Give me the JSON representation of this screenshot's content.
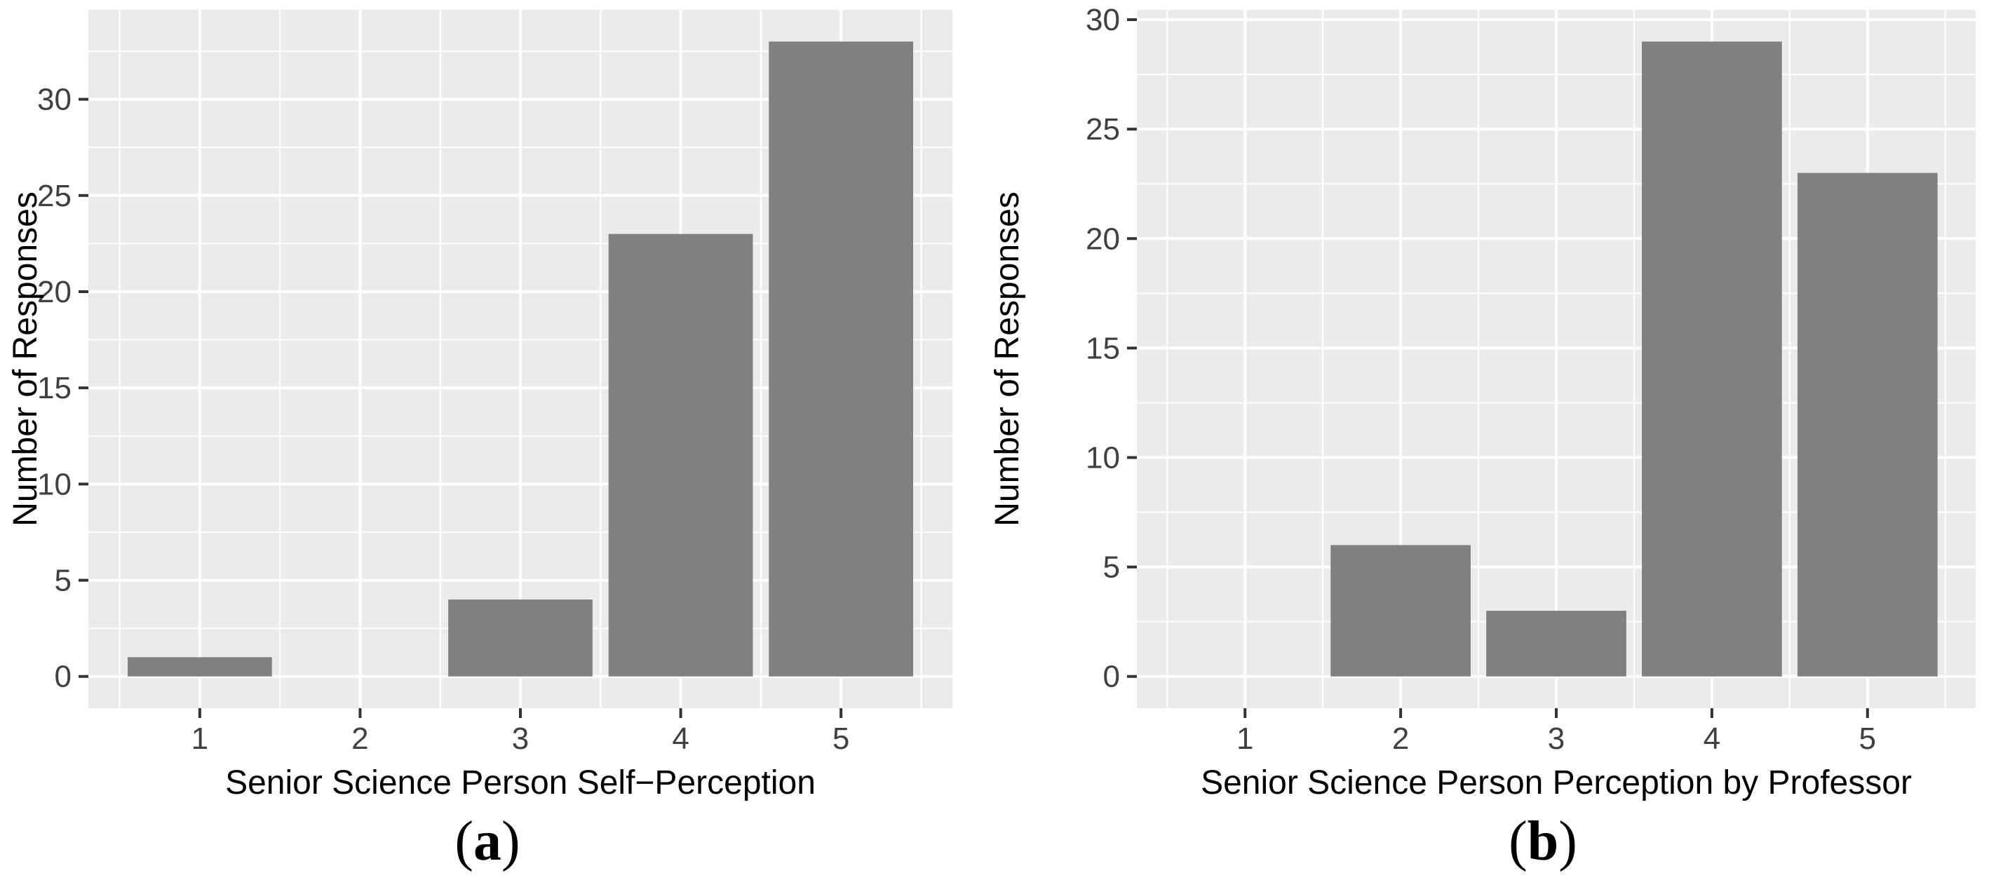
{
  "style": {
    "background": "#FFFFFF",
    "panel_background": "#EBEBEB",
    "grid_color": "#FFFFFF",
    "bar_color": "#808080",
    "tick_mark_color": "#333333",
    "tick_label_color": "#404040",
    "axis_title_color": "#000000",
    "caption_color": "#000000"
  },
  "chart_data": [
    {
      "type": "bar",
      "caption_open": "(",
      "caption_letter": "a",
      "caption_close": ")",
      "xlabel": "Senior Science Person Self−Perception",
      "ylabel": "Number of Responses",
      "categories": [
        1,
        2,
        3,
        4,
        5
      ],
      "values": [
        1,
        0,
        4,
        23,
        33
      ],
      "bar_width": 0.9,
      "xticks": [
        "1",
        "2",
        "3",
        "4",
        "5"
      ],
      "yticks": [
        0,
        5,
        10,
        15,
        20,
        25,
        30
      ],
      "xlim": [
        0.305,
        5.695
      ],
      "ylim": [
        -1.65,
        34.65
      ],
      "grid": "white major and minor gridlines on grey panel (ggplot theme_grey)",
      "legend": "none"
    },
    {
      "type": "bar",
      "caption_open": "(",
      "caption_letter": "b",
      "caption_close": ")",
      "xlabel": "Senior Science Person Perception by Professor",
      "ylabel": "Number of Responses",
      "categories": [
        1,
        2,
        3,
        4,
        5
      ],
      "values": [
        0,
        6,
        3,
        29,
        23
      ],
      "bar_width": 0.9,
      "xticks": [
        "1",
        "2",
        "3",
        "4",
        "5"
      ],
      "yticks": [
        0,
        5,
        10,
        15,
        20,
        25,
        30
      ],
      "xlim": [
        0.305,
        5.695
      ],
      "ylim": [
        -1.45,
        30.45
      ],
      "grid": "white major and minor gridlines on grey panel (ggplot theme_grey)",
      "legend": "none"
    }
  ]
}
